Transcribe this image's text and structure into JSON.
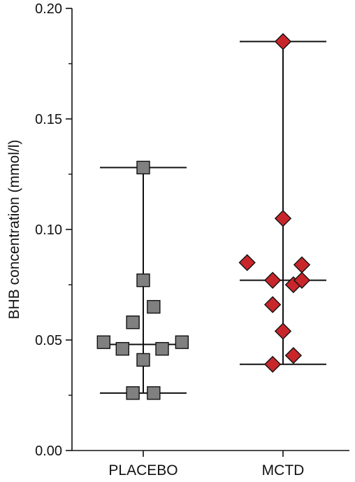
{
  "chart_data": {
    "type": "scatter",
    "title": "",
    "xlabel": "",
    "ylabel": "BHB concentration (mmol/l)",
    "ylim": [
      0,
      0.2
    ],
    "yticks": [
      "0.00",
      "0.05",
      "0.10",
      "0.15",
      "0.20"
    ],
    "categories": [
      "PLACEBO",
      "MCTD"
    ],
    "grid": false,
    "series": [
      {
        "category": "PLACEBO",
        "marker": "square",
        "color": "#808080",
        "points": [
          {
            "offset": 0.0,
            "value": 0.128
          },
          {
            "offset": 0.0,
            "value": 0.077
          },
          {
            "offset": 0.55,
            "value": 0.065
          },
          {
            "offset": -0.55,
            "value": 0.058
          },
          {
            "offset": -2.1,
            "value": 0.049
          },
          {
            "offset": -1.1,
            "value": 0.046
          },
          {
            "offset": 1.0,
            "value": 0.046
          },
          {
            "offset": 2.05,
            "value": 0.049
          },
          {
            "offset": 0.0,
            "value": 0.041
          },
          {
            "offset": -0.55,
            "value": 0.026
          },
          {
            "offset": 0.55,
            "value": 0.026
          }
        ],
        "median": 0.048,
        "min": 0.026,
        "max": 0.128
      },
      {
        "category": "MCTD",
        "marker": "diamond",
        "color": "#c8262b",
        "points": [
          {
            "offset": 0.0,
            "value": 0.185
          },
          {
            "offset": 0.0,
            "value": 0.105
          },
          {
            "offset": -1.9,
            "value": 0.085
          },
          {
            "offset": 1.0,
            "value": 0.084
          },
          {
            "offset": -0.55,
            "value": 0.077
          },
          {
            "offset": 0.55,
            "value": 0.075
          },
          {
            "offset": 1.0,
            "value": 0.077
          },
          {
            "offset": -0.55,
            "value": 0.066
          },
          {
            "offset": 0.0,
            "value": 0.054
          },
          {
            "offset": 0.55,
            "value": 0.043
          },
          {
            "offset": -0.55,
            "value": 0.039
          }
        ],
        "median": 0.077,
        "min": 0.039,
        "max": 0.185
      }
    ]
  }
}
